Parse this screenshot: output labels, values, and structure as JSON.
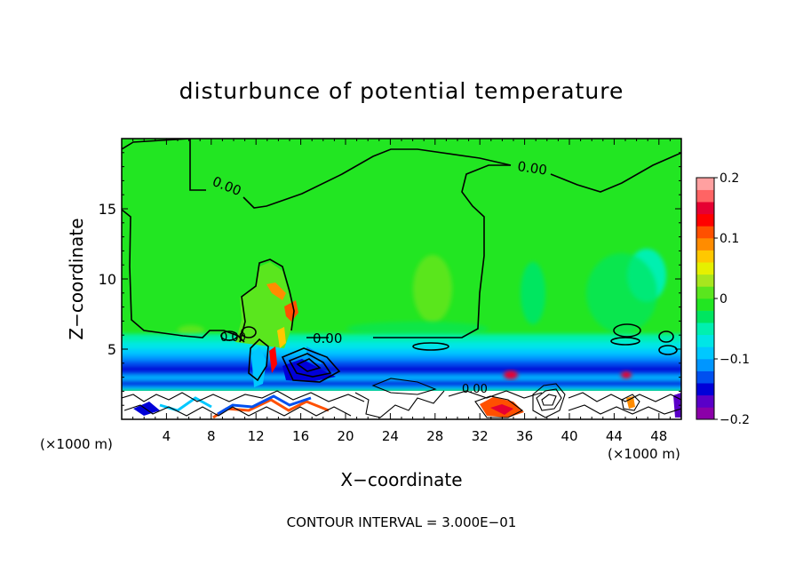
{
  "chart_data": {
    "type": "heatmap",
    "title": "disturbunce of potential temperature",
    "xlabel": "X−coordinate",
    "ylabel": "Z−coordinate",
    "x_unit_left": "(×1000 m)",
    "x_unit_right": "(×1000 m)",
    "xlim": [
      0,
      50
    ],
    "ylim": [
      0,
      20
    ],
    "x_ticks": [
      "4",
      "8",
      "12",
      "16",
      "20",
      "24",
      "28",
      "32",
      "36",
      "40",
      "44",
      "48"
    ],
    "x_tick_values": [
      4,
      8,
      12,
      16,
      20,
      24,
      28,
      32,
      36,
      40,
      44,
      48
    ],
    "y_ticks": [
      "5",
      "10",
      "15"
    ],
    "y_tick_values": [
      5,
      10,
      15
    ],
    "colorbar": {
      "ticks": [
        "0.2",
        "0.1",
        "0",
        "−0.1",
        "−0.2"
      ],
      "tick_values": [
        0.2,
        0.1,
        0,
        -0.1,
        -0.2
      ],
      "range": [
        -0.2,
        0.2
      ],
      "colors": [
        "#8b00a8",
        "#5a00c8",
        "#0000d8",
        "#0050f0",
        "#0096ff",
        "#00c8ff",
        "#00e6e6",
        "#00f0b0",
        "#00e660",
        "#22e622",
        "#5ae61e",
        "#a8e61e",
        "#e6f000",
        "#ffc800",
        "#ff8c00",
        "#ff5000",
        "#ff0000",
        "#e60032",
        "#ff6464",
        "#ffa0a0"
      ]
    },
    "contour_labels": [
      "0.00",
      "0.00",
      "0.00",
      "0.00",
      "0.00"
    ],
    "footnote": "CONTOUR INTERVAL = 3.000E−01"
  }
}
